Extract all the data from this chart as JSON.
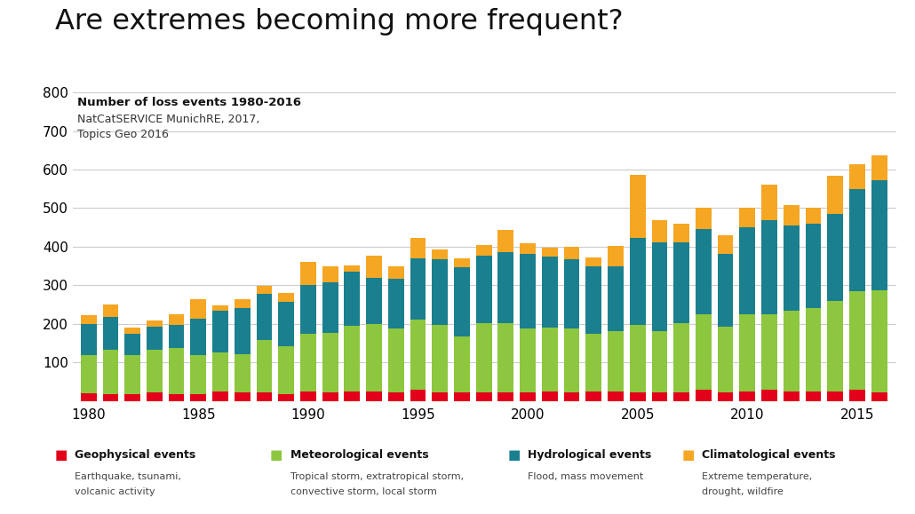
{
  "title": "Are extremes becoming more frequent?",
  "subtitle_bold": "Number of loss events 1980-2016",
  "subtitle_normal": "NatCatSERVICE MunichRE, 2017,\nTopics Geo 2016",
  "years": [
    1980,
    1981,
    1982,
    1983,
    1984,
    1985,
    1986,
    1987,
    1988,
    1989,
    1990,
    1991,
    1992,
    1993,
    1994,
    1995,
    1996,
    1997,
    1998,
    1999,
    2000,
    2001,
    2002,
    2003,
    2004,
    2005,
    2006,
    2007,
    2008,
    2009,
    2010,
    2011,
    2012,
    2013,
    2014,
    2015,
    2016
  ],
  "geophysical": [
    20,
    18,
    18,
    22,
    18,
    18,
    25,
    22,
    22,
    18,
    25,
    22,
    25,
    25,
    22,
    30,
    22,
    22,
    22,
    22,
    22,
    25,
    22,
    25,
    25,
    22,
    22,
    22,
    30,
    22,
    25,
    30,
    25,
    25,
    25,
    30,
    22
  ],
  "meteorological": [
    100,
    115,
    100,
    110,
    120,
    100,
    100,
    100,
    135,
    125,
    150,
    155,
    170,
    175,
    165,
    180,
    175,
    145,
    180,
    180,
    165,
    165,
    165,
    150,
    155,
    175,
    160,
    180,
    195,
    170,
    200,
    195,
    210,
    215,
    235,
    255,
    265
  ],
  "hydrological": [
    80,
    85,
    55,
    60,
    60,
    95,
    110,
    120,
    120,
    115,
    125,
    130,
    140,
    120,
    130,
    160,
    170,
    180,
    175,
    185,
    195,
    185,
    180,
    175,
    170,
    225,
    230,
    210,
    220,
    190,
    225,
    245,
    220,
    220,
    225,
    265,
    285
  ],
  "climatological": [
    22,
    32,
    17,
    17,
    27,
    52,
    12,
    22,
    22,
    22,
    60,
    42,
    17,
    57,
    32,
    52,
    27,
    22,
    27,
    57,
    27,
    22,
    32,
    22,
    52,
    165,
    57,
    47,
    57,
    47,
    52,
    90,
    52,
    42,
    100,
    65,
    65
  ],
  "colors": {
    "geophysical": "#e3001b",
    "meteorological": "#8dc63f",
    "hydrological": "#1a7f8e",
    "climatological": "#f5a623"
  },
  "ylim": [
    0,
    800
  ],
  "yticks": [
    0,
    100,
    200,
    300,
    400,
    500,
    600,
    700,
    800
  ],
  "background_color": "#ffffff",
  "legend": [
    {
      "label": "Geophysical events",
      "sublabel": "Earthquake, tsunami,\nvolcanic activity",
      "color": "#e3001b"
    },
    {
      "label": "Meteorological events",
      "sublabel": "Tropical storm, extratropical storm,\nconvective storm, local storm",
      "color": "#8dc63f"
    },
    {
      "label": "Hydrological events",
      "sublabel": "Flood, mass movement",
      "color": "#1a7f8e"
    },
    {
      "label": "Climatological events",
      "sublabel": "Extreme temperature,\ndrought, wildfire",
      "color": "#f5a623"
    }
  ]
}
